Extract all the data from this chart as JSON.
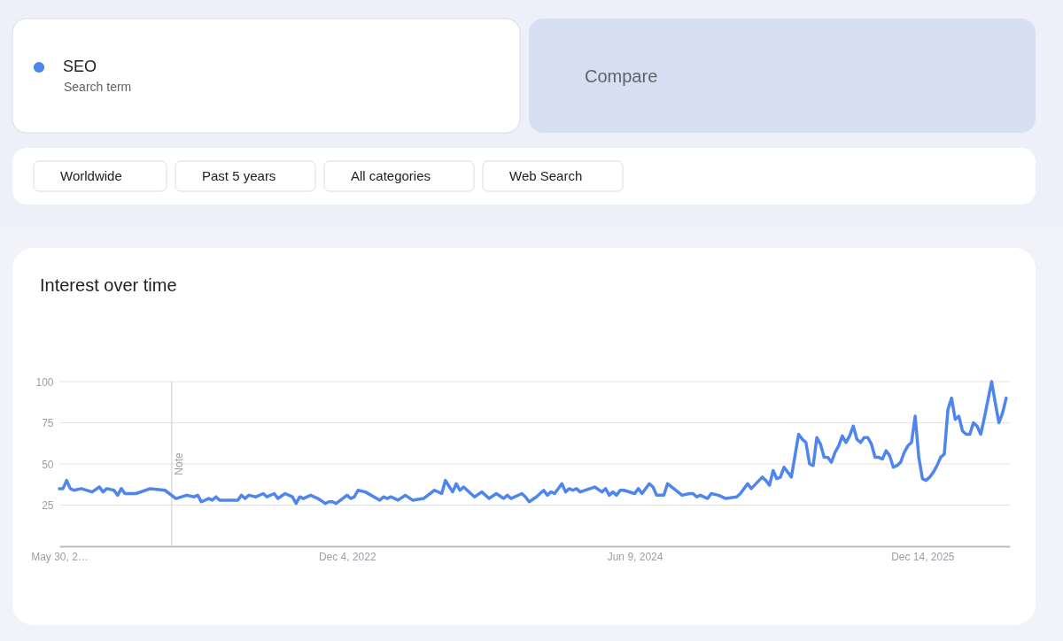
{
  "chart_data": {
    "type": "line",
    "title": "Interest over time",
    "annotations": [
      "Search term",
      "Compare",
      "Worldwide",
      "Past 5 years",
      "All categories",
      "Web Search"
    ],
    "xlim": [
      "2021-05-30",
      "2026-05-31"
    ],
    "xticks": [
      {
        "value": "2021-05-30",
        "label": "May 30, 2…"
      },
      {
        "value": "2022-12-04",
        "label": "Dec 4, 2022"
      },
      {
        "value": "2024-06-09",
        "label": "Jun 9, 2024"
      },
      {
        "value": "2025-12-14",
        "label": "Dec 14, 2025"
      }
    ],
    "ylim": [
      0,
      100
    ],
    "yticks": [
      25,
      50,
      75,
      100
    ],
    "grid": "y",
    "legend": "top left",
    "ref_lines": [
      {
        "axis": "x",
        "value": "2022-01-01",
        "label": "Note",
        "color": "#cccccc"
      }
    ],
    "x": [
      "2021-05-30",
      "2021-06-06",
      "2021-06-13",
      "2021-06-20",
      "2021-06-27",
      "2021-07-11",
      "2021-08-01",
      "2021-08-15",
      "2021-08-22",
      "2021-08-29",
      "2021-09-12",
      "2021-09-19",
      "2021-09-26",
      "2021-10-03",
      "2021-10-10",
      "2021-10-24",
      "2021-11-21",
      "2021-12-19",
      "2022-01-09",
      "2022-01-30",
      "2022-02-13",
      "2022-02-20",
      "2022-02-27",
      "2022-03-13",
      "2022-03-20",
      "2022-03-27",
      "2022-04-03",
      "2022-05-08",
      "2022-05-15",
      "2022-05-22",
      "2022-05-29",
      "2022-06-12",
      "2022-06-26",
      "2022-07-03",
      "2022-07-17",
      "2022-07-24",
      "2022-08-07",
      "2022-08-21",
      "2022-08-28",
      "2022-09-04",
      "2022-09-11",
      "2022-09-25",
      "2022-10-09",
      "2022-10-23",
      "2022-10-30",
      "2022-11-06",
      "2022-11-13",
      "2022-12-04",
      "2022-12-11",
      "2022-12-18",
      "2022-12-25",
      "2023-01-08",
      "2023-02-05",
      "2023-02-12",
      "2023-02-19",
      "2023-02-26",
      "2023-03-12",
      "2023-03-26",
      "2023-04-09",
      "2023-04-30",
      "2023-05-21",
      "2023-06-04",
      "2023-06-11",
      "2023-06-25",
      "2023-07-02",
      "2023-07-09",
      "2023-07-16",
      "2023-08-06",
      "2023-08-20",
      "2023-09-03",
      "2023-09-17",
      "2023-10-01",
      "2023-10-08",
      "2023-10-15",
      "2023-11-05",
      "2023-11-12",
      "2023-11-19",
      "2023-12-03",
      "2023-12-17",
      "2023-12-24",
      "2023-12-31",
      "2024-01-07",
      "2024-01-21",
      "2024-01-28",
      "2024-02-04",
      "2024-02-11",
      "2024-02-18",
      "2024-02-25",
      "2024-03-24",
      "2024-04-07",
      "2024-04-14",
      "2024-04-21",
      "2024-04-28",
      "2024-05-05",
      "2024-05-12",
      "2024-05-19",
      "2024-06-09",
      "2024-06-16",
      "2024-06-23",
      "2024-07-07",
      "2024-07-14",
      "2024-07-21",
      "2024-08-04",
      "2024-08-11",
      "2024-09-08",
      "2024-09-22",
      "2024-09-29",
      "2024-10-06",
      "2024-10-13",
      "2024-10-27",
      "2024-11-03",
      "2024-11-17",
      "2024-12-01",
      "2024-12-22",
      "2024-12-29",
      "2025-01-12",
      "2025-01-19",
      "2025-02-09",
      "2025-02-16",
      "2025-02-23",
      "2025-03-02",
      "2025-03-09",
      "2025-03-16",
      "2025-03-23",
      "2025-03-30",
      "2025-04-06",
      "2025-04-20",
      "2025-04-27",
      "2025-05-04",
      "2025-05-11",
      "2025-05-18",
      "2025-05-25",
      "2025-06-01",
      "2025-06-08",
      "2025-06-15",
      "2025-06-22",
      "2025-06-29",
      "2025-07-06",
      "2025-07-13",
      "2025-07-20",
      "2025-07-27",
      "2025-08-03",
      "2025-08-10",
      "2025-08-17",
      "2025-08-24",
      "2025-08-31",
      "2025-09-07",
      "2025-09-14",
      "2025-09-21",
      "2025-09-28",
      "2025-10-05",
      "2025-10-12",
      "2025-10-19",
      "2025-10-26",
      "2025-11-02",
      "2025-11-09",
      "2025-11-16",
      "2025-11-23",
      "2025-11-30",
      "2025-12-07",
      "2025-12-14",
      "2025-12-21",
      "2025-12-28",
      "2026-01-04",
      "2026-01-11",
      "2026-01-18",
      "2026-01-25",
      "2026-02-01",
      "2026-02-08",
      "2026-02-15",
      "2026-02-22",
      "2026-03-01",
      "2026-03-08",
      "2026-03-15",
      "2026-03-22",
      "2026-03-29",
      "2026-04-05",
      "2026-04-12",
      "2026-04-19",
      "2026-04-26",
      "2026-05-03",
      "2026-05-10",
      "2026-05-17",
      "2026-05-24"
    ],
    "series": [
      {
        "name": "SEO",
        "color": "#4f86ec",
        "values": [
          35,
          35,
          40,
          35,
          34,
          35,
          33,
          36,
          33,
          35,
          34,
          31,
          35,
          32,
          32,
          32,
          35,
          34,
          29,
          31,
          30,
          31,
          27,
          29,
          28,
          30,
          28,
          28,
          31,
          29,
          31,
          30,
          32,
          30,
          32,
          29,
          32,
          30,
          26,
          30,
          29,
          31,
          29,
          26,
          27,
          27,
          26,
          31,
          29,
          30,
          34,
          33,
          28,
          30,
          29,
          30,
          28,
          31,
          28,
          29,
          34,
          32,
          40,
          33,
          38,
          34,
          36,
          30,
          33,
          29,
          32,
          29,
          31,
          29,
          32,
          30,
          27,
          30,
          34,
          31,
          33,
          32,
          38,
          33,
          35,
          34,
          35,
          33,
          36,
          33,
          35,
          31,
          33,
          31,
          34,
          34,
          32,
          35,
          32,
          38,
          36,
          31,
          31,
          38,
          31,
          32,
          32,
          30,
          31,
          29,
          32,
          31,
          29,
          30,
          32,
          38,
          35,
          42,
          40,
          37,
          46,
          41,
          42,
          48,
          45,
          42,
          68,
          65,
          63,
          50,
          49,
          66,
          62,
          54,
          54,
          51,
          57,
          61,
          67,
          63,
          67,
          73,
          65,
          63,
          66,
          66,
          62,
          54,
          54,
          53,
          58,
          55,
          48,
          49,
          51,
          57,
          61,
          63,
          79,
          54,
          41,
          40,
          42,
          45,
          49,
          54,
          56,
          83,
          90,
          77,
          79,
          70,
          68,
          68,
          75,
          73,
          68,
          78,
          89,
          100,
          87,
          75,
          81,
          90
        ]
      }
    ]
  }
}
